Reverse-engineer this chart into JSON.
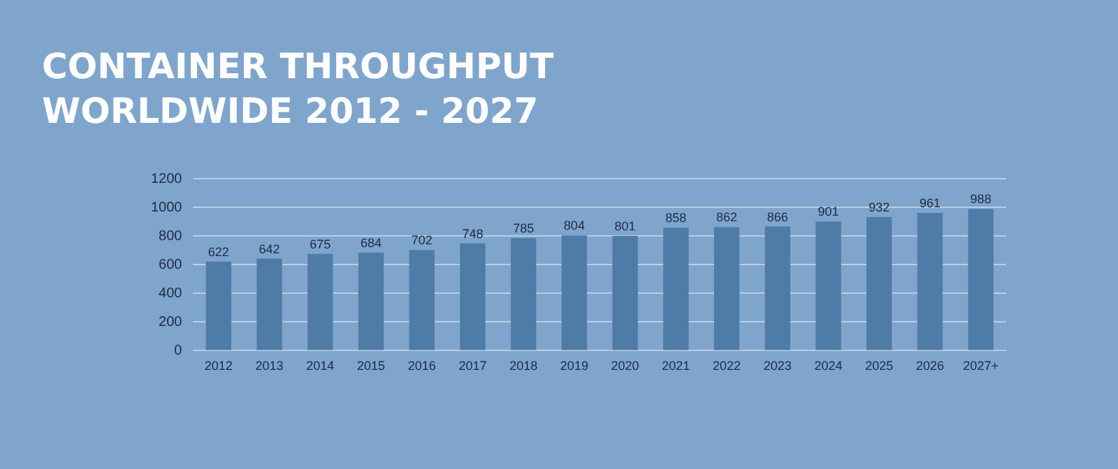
{
  "chart_data": {
    "type": "bar",
    "title": "CONTAINER THROUGHPUT WORLDWIDE 2012 - 2027",
    "categories": [
      "2012",
      "2013",
      "2014",
      "2015",
      "2016",
      "2017",
      "2018",
      "2019",
      "2020",
      "2021",
      "2022",
      "2023",
      "2024",
      "2025",
      "2026",
      "2027+"
    ],
    "values": [
      622,
      642,
      675,
      684,
      702,
      748,
      785,
      804,
      801,
      858,
      862,
      866,
      901,
      932,
      961,
      988
    ],
    "color": "#4f7ba7",
    "ylim": [
      0,
      1200
    ],
    "yticks": [
      0,
      200,
      400,
      600,
      800,
      1000,
      1200
    ],
    "grid": "y",
    "data_labels": true
  }
}
